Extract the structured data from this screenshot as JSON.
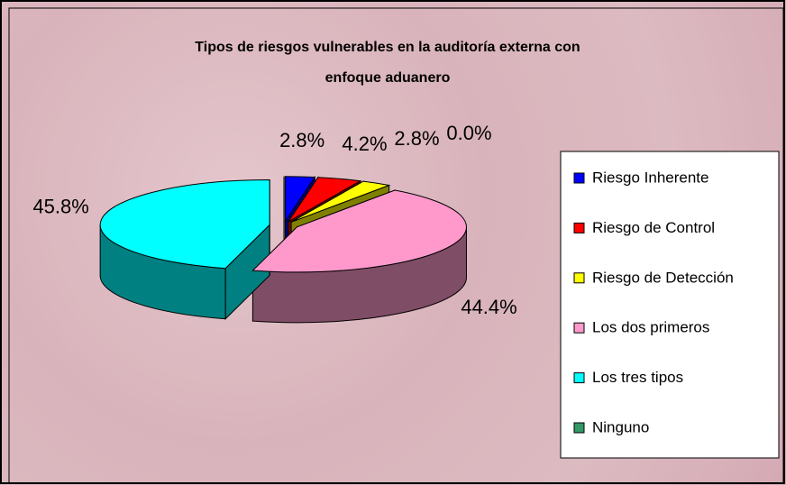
{
  "chart_data": {
    "type": "pie",
    "title": "Tipos de riesgos vulnerables en la auditoría externa con enfoque aduanero",
    "categories": [
      "Riesgo Inherente",
      "Riesgo de Control",
      "Riesgo de Detección",
      "Los dos primeros",
      "Los tres tipos",
      "Ninguno"
    ],
    "values": [
      2.8,
      4.2,
      2.8,
      44.4,
      45.8,
      0.0
    ],
    "value_labels": [
      "2.8%",
      "4.2%",
      "2.8%",
      "44.4%",
      "45.8%",
      "0.0%"
    ],
    "colors": [
      "#0000ff",
      "#ff0000",
      "#ffff00",
      "#ff99cc",
      "#00ffff",
      "#339966"
    ],
    "legend": "right"
  }
}
